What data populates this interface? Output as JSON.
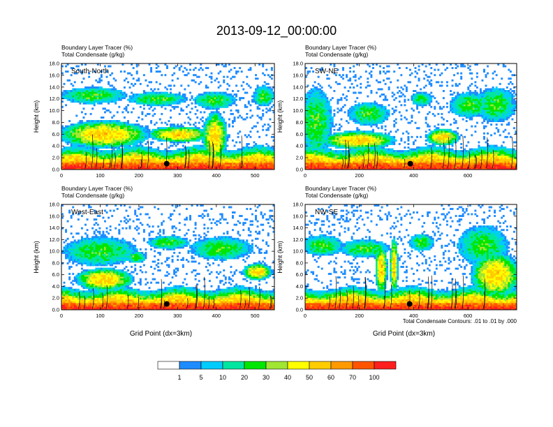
{
  "title": "2013-09-12_00:00:00",
  "colors": {
    "levels": [
      "#ffffff",
      "#1e8cff",
      "#00ccff",
      "#00e6a0",
      "#00e600",
      "#a0e632",
      "#ffff00",
      "#ffcc00",
      "#ff9900",
      "#ff5500",
      "#ff1e1e"
    ],
    "contour": "#000000"
  },
  "colorbar": {
    "labels": [
      "1",
      "5",
      "10",
      "20",
      "30",
      "40",
      "50",
      "60",
      "70",
      "100"
    ]
  },
  "note": "Total Condensate Contours: .01 to .01 by .000",
  "chart_data": [
    {
      "type": "heatmap",
      "name": "South-North",
      "legend_left": "Boundary Layer Tracer   (%)",
      "legend_left2": "Total Condensate   (g/kg)",
      "xlabel": "",
      "ylabel": "Height (km)",
      "xlim": [
        0,
        550
      ],
      "ylim": [
        0,
        18
      ],
      "xticks": [
        "0",
        "100",
        "200",
        "300",
        "400",
        "500"
      ],
      "yticks": [
        "0.0",
        "2.0",
        "4.0",
        "6.0",
        "8.0",
        "10.0",
        "12.0",
        "14.0",
        "16.0",
        "18.0"
      ],
      "site_x": 272
    },
    {
      "type": "heatmap",
      "name": "SW-NE",
      "legend_left": "Boundary Layer Tracer   (%)",
      "legend_left2": "Total Condensate   (g/kg)",
      "xlabel": "",
      "ylabel": "Height (km)",
      "xlim": [
        0,
        780
      ],
      "ylim": [
        0,
        18
      ],
      "xticks": [
        "0",
        "200",
        "400",
        "600"
      ],
      "yticks": [
        "0.0",
        "2.0",
        "4.0",
        "6.0",
        "8.0",
        "10.0",
        "12.0",
        "14.0",
        "16.0",
        "18.0"
      ],
      "site_x": 388
    },
    {
      "type": "heatmap",
      "name": "West-East",
      "legend_left": "Boundary Layer Tracer   (%)",
      "legend_left2": "Total Condensate   (g/kg)",
      "xlabel": "Grid Point (dx=3km)",
      "ylabel": "Height (km)",
      "xlim": [
        0,
        550
      ],
      "ylim": [
        0,
        18
      ],
      "xticks": [
        "0",
        "100",
        "200",
        "300",
        "400",
        "500"
      ],
      "yticks": [
        "0.0",
        "2.0",
        "4.0",
        "6.0",
        "8.0",
        "10.0",
        "12.0",
        "14.0",
        "16.0",
        "18.0"
      ],
      "site_x": 272
    },
    {
      "type": "heatmap",
      "name": "NW-SE",
      "legend_left": "Boundary Layer Tracer   (%)",
      "legend_left2": "Total Condensate   (g/kg)",
      "xlabel": "Grid Point (dx=3km)",
      "ylabel": "Height (km)",
      "xlim": [
        0,
        780
      ],
      "ylim": [
        0,
        18
      ],
      "xticks": [
        "0",
        "200",
        "400",
        "600"
      ],
      "yticks": [
        "0.0",
        "2.0",
        "4.0",
        "6.0",
        "8.0",
        "10.0",
        "12.0",
        "14.0",
        "16.0",
        "18.0"
      ],
      "site_x": 385
    }
  ]
}
